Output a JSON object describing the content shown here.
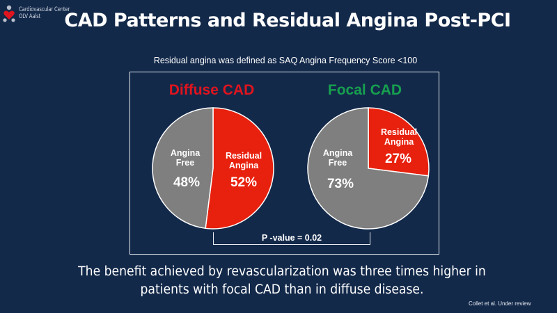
{
  "logo": {
    "icon": "heart-figure-logo-icon",
    "line1": "Cardiovascular Center",
    "line2": "OLV Aalst"
  },
  "title": "CAD Patterns and Residual Angina Post-PCI",
  "subtitle": "Residual angina was defined  as SAQ Angina Frequency  Score <100",
  "colors": {
    "background": "#13294a",
    "residual": "#e8210e",
    "free": "#7f7f7f",
    "diffuse_title": "#e0141e",
    "focal_title": "#16a04e"
  },
  "chart_data": [
    {
      "type": "pie",
      "title": "Diffuse CAD",
      "slices": [
        {
          "label": "Residual Angina",
          "value": 52,
          "display": "52%",
          "color": "#e8210e"
        },
        {
          "label": "Angina Free",
          "value": 48,
          "display": "48%",
          "color": "#7f7f7f"
        }
      ],
      "start": "12 o'clock, clockwise"
    },
    {
      "type": "pie",
      "title": "Focal CAD",
      "slices": [
        {
          "label": "Residual Angina",
          "value": 27,
          "display": "27%",
          "color": "#e8210e"
        },
        {
          "label": "Angina Free",
          "value": 73,
          "display": "73%",
          "color": "#7f7f7f"
        }
      ],
      "start": "12 o'clock, clockwise"
    }
  ],
  "comparison": {
    "pvalue_text": "P -value = 0.02"
  },
  "conclusion": "The benefit achieved by revascularization was three times higher in patients with focal CAD than in diffuse disease.",
  "citation": "Collet  et al. Under  review"
}
